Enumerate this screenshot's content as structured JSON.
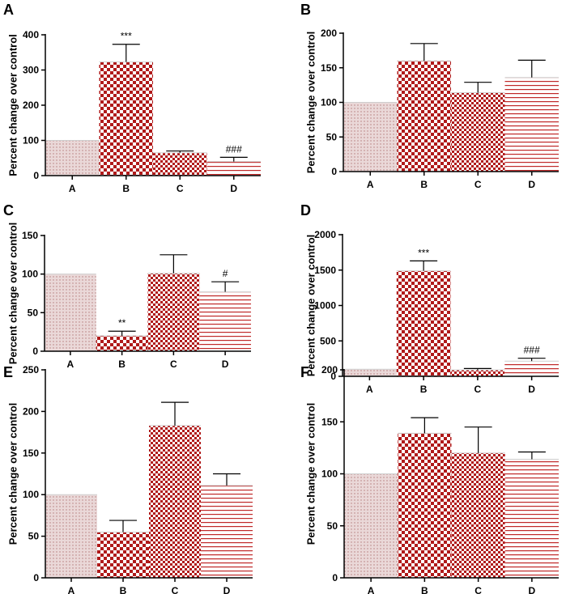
{
  "figure": {
    "colors": {
      "dots_bg": "#ead8d8",
      "dots_fg": "#b47a7a",
      "checker": "#b01a1a",
      "stripe": "#c02828",
      "stripe_bg": "#ffffff"
    },
    "patterns_by_category": [
      "dots",
      "checker-large",
      "checker-small",
      "stripes"
    ]
  },
  "chart_data": [
    {
      "panel": "A",
      "type": "bar",
      "ylabel": "Percent change over control",
      "categories": [
        "A",
        "B",
        "C",
        "D"
      ],
      "values": [
        100,
        323,
        65,
        40
      ],
      "errors": [
        0,
        50,
        5,
        12
      ],
      "annotations": [
        "",
        "***",
        "",
        "###"
      ],
      "ylim": [
        0,
        400
      ],
      "yticks": [
        0,
        100,
        200,
        300,
        400
      ]
    },
    {
      "panel": "B",
      "type": "bar",
      "ylabel": "Percent change over control",
      "categories": [
        "A",
        "B",
        "C",
        "D"
      ],
      "values": [
        100,
        160,
        114,
        136
      ],
      "errors": [
        0,
        25,
        15,
        25
      ],
      "annotations": [
        "",
        "",
        "",
        ""
      ],
      "ylim": [
        0,
        200
      ],
      "yticks": [
        0,
        50,
        100,
        150,
        200
      ]
    },
    {
      "panel": "C",
      "type": "bar",
      "ylabel": "Percent change over control",
      "categories": [
        "A",
        "B",
        "C",
        "D"
      ],
      "values": [
        100,
        20,
        101,
        77
      ],
      "errors": [
        0,
        6,
        24,
        13
      ],
      "annotations": [
        "",
        "**",
        "",
        "#"
      ],
      "ylim": [
        0,
        150
      ],
      "yticks": [
        0,
        50,
        100,
        150
      ]
    },
    {
      "panel": "D",
      "type": "bar",
      "ylabel": "Percent change over control",
      "categories": [
        "A",
        "B",
        "C",
        "D"
      ],
      "values": [
        100,
        1490,
        90,
        215
      ],
      "errors": [
        0,
        140,
        20,
        40
      ],
      "annotations": [
        "",
        "***",
        "",
        "###"
      ],
      "ylim": [
        0,
        2000
      ],
      "yticks": [
        0,
        500,
        1000,
        1500,
        2000
      ]
    },
    {
      "panel": "E",
      "type": "bar",
      "ylabel": "Percent change over control",
      "categories": [
        "A",
        "B",
        "C",
        "D"
      ],
      "values": [
        100,
        55,
        183,
        111
      ],
      "errors": [
        0,
        14,
        28,
        14
      ],
      "annotations": [
        "",
        "",
        "",
        ""
      ],
      "ylim": [
        0,
        250
      ],
      "yticks": [
        0,
        50,
        100,
        150,
        200,
        250
      ]
    },
    {
      "panel": "F",
      "type": "bar",
      "ylabel": "Percent change over control",
      "categories": [
        "A",
        "B",
        "C",
        "D"
      ],
      "values": [
        100,
        139,
        120,
        114
      ],
      "errors": [
        0,
        15,
        25,
        7
      ],
      "annotations": [
        "",
        "",
        "",
        ""
      ],
      "ylim": [
        0,
        200
      ],
      "yticks": [
        0,
        50,
        100,
        150,
        200
      ]
    }
  ]
}
